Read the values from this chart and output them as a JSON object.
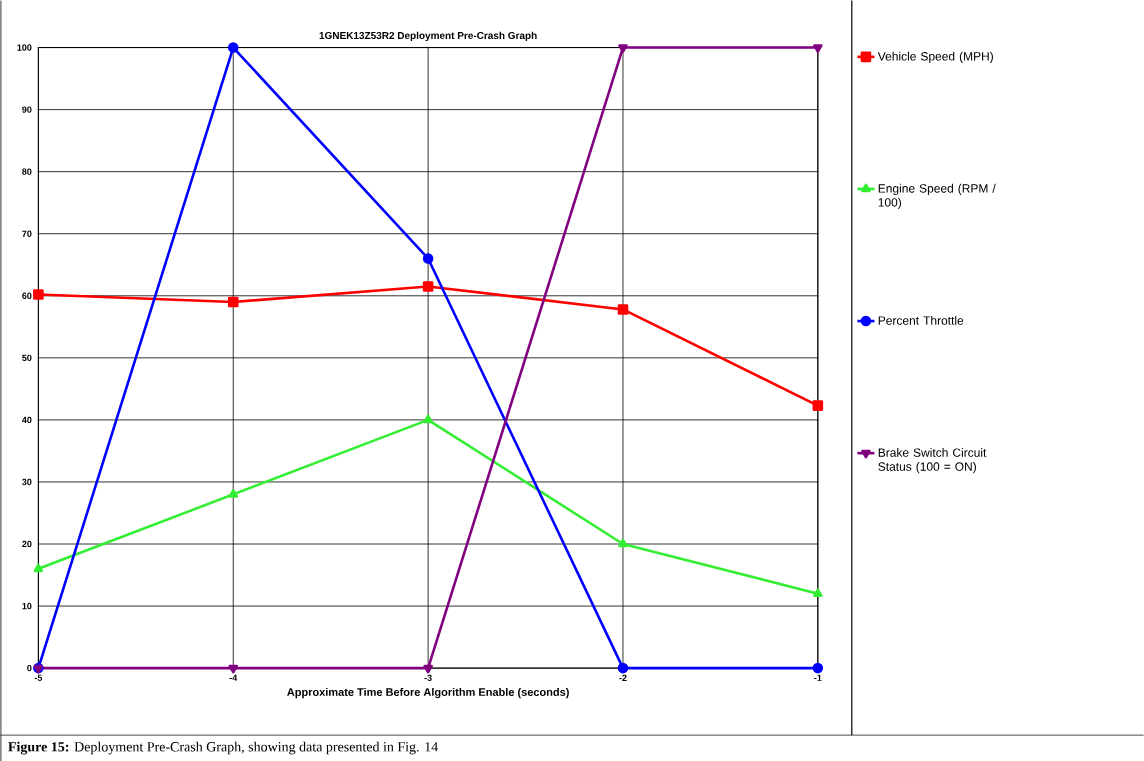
{
  "chart_data": {
    "type": "line",
    "title": "1GNEK13Z53R2 Deployment Pre-Crash Graph",
    "xlabel": "Approximate Time Before Algorithm Enable (seconds)",
    "x": [
      -5,
      -4,
      -3,
      -2,
      -1
    ],
    "series": [
      {
        "name": "Vehicle Speed (MPH)",
        "color": "#ff0000",
        "marker": "square",
        "values": [
          60.2,
          59,
          61.5,
          57.8,
          42.3
        ]
      },
      {
        "name": "Engine Speed (RPM / 100)",
        "color": "#33ee33",
        "marker": "triangle",
        "values": [
          16,
          28,
          40,
          20,
          12
        ]
      },
      {
        "name": "Percent Throttle",
        "color": "#0000ff",
        "marker": "circle",
        "values": [
          0,
          100,
          66,
          0,
          0
        ]
      },
      {
        "name": "Brake Switch Circuit Status (100 = ON)",
        "color": "#800080",
        "marker": "triangle",
        "values": [
          0,
          0,
          0,
          100,
          100
        ]
      }
    ],
    "xlim": [
      -5,
      -1
    ],
    "ylim": [
      0,
      100
    ],
    "xticks": [
      -5,
      -4,
      -3,
      -2,
      -1
    ],
    "yticks": [
      0,
      10,
      20,
      30,
      40,
      50,
      60,
      70,
      80,
      90,
      100
    ],
    "grid": true,
    "legend": "right",
    "line_style": "solid",
    "annotations": [
      "**Figure 15:** Deployment Pre-Crash Graph, showing data presented in Fig. 14"
    ]
  }
}
